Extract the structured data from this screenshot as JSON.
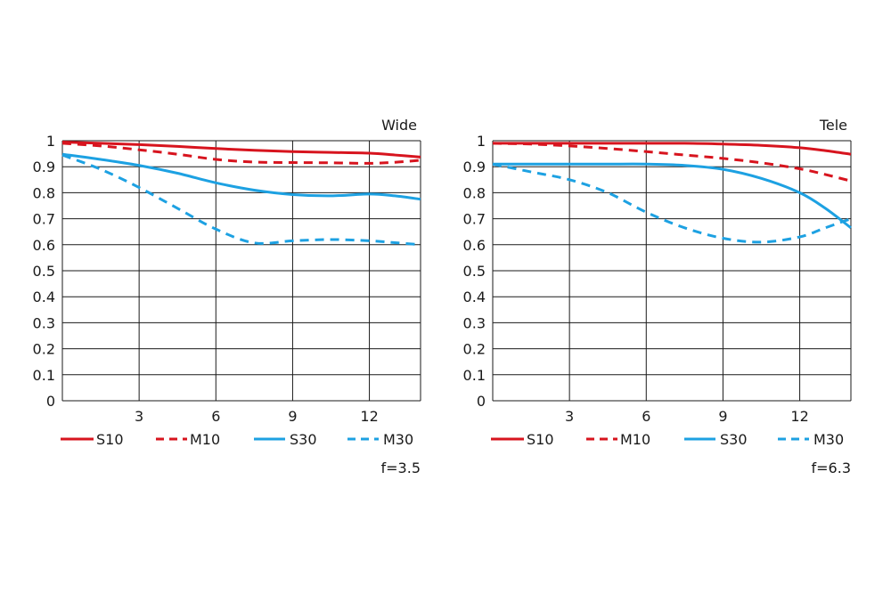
{
  "colors": {
    "red": "#d7141e",
    "blue": "#1da1e2",
    "grid": "#1a1a1a"
  },
  "chart_data": [
    {
      "type": "line",
      "title": "Wide",
      "footnote": "f=3.5",
      "xlim": [
        0,
        14
      ],
      "ylim": [
        0,
        1
      ],
      "xticks": [
        3,
        6,
        9,
        12
      ],
      "yticks": [
        0,
        0.1,
        0.2,
        0.3,
        0.4,
        0.5,
        0.6,
        0.7,
        0.8,
        0.9,
        1
      ],
      "ytick_labels": [
        "0",
        "0.1",
        "0.2",
        "0.3",
        "0.4",
        "0.5",
        "0.6",
        "0.7",
        "0.8",
        "0.9",
        "1"
      ],
      "grid": true,
      "legend_position": "bottom",
      "x": [
        0,
        1.5,
        3,
        4.5,
        6,
        7.5,
        9,
        10.5,
        12,
        13,
        14
      ],
      "series": [
        {
          "name": "S10",
          "color": "red",
          "dashed": false,
          "values": [
            0.995,
            0.99,
            0.985,
            0.978,
            0.97,
            0.963,
            0.958,
            0.955,
            0.952,
            0.945,
            0.937
          ]
        },
        {
          "name": "M10",
          "color": "red",
          "dashed": true,
          "values": [
            0.99,
            0.98,
            0.965,
            0.948,
            0.928,
            0.918,
            0.916,
            0.915,
            0.913,
            0.917,
            0.925
          ]
        },
        {
          "name": "S30",
          "color": "blue",
          "dashed": false,
          "values": [
            0.948,
            0.928,
            0.905,
            0.875,
            0.838,
            0.81,
            0.793,
            0.788,
            0.795,
            0.788,
            0.775
          ]
        },
        {
          "name": "M30",
          "color": "blue",
          "dashed": true,
          "values": [
            0.945,
            0.89,
            0.82,
            0.74,
            0.66,
            0.607,
            0.615,
            0.62,
            0.615,
            0.608,
            0.6
          ]
        }
      ]
    },
    {
      "type": "line",
      "title": "Tele",
      "footnote": "f=6.3",
      "xlim": [
        0,
        14
      ],
      "ylim": [
        0,
        1
      ],
      "xticks": [
        3,
        6,
        9,
        12
      ],
      "yticks": [
        0,
        0.1,
        0.2,
        0.3,
        0.4,
        0.5,
        0.6,
        0.7,
        0.8,
        0.9,
        1
      ],
      "ytick_labels": [
        "0",
        "0.1",
        "0.2",
        "0.3",
        "0.4",
        "0.5",
        "0.6",
        "0.7",
        "0.8",
        "0.9",
        "1"
      ],
      "grid": true,
      "legend_position": "bottom",
      "x": [
        0,
        1.5,
        3,
        4.5,
        6,
        7.5,
        9,
        10.5,
        12,
        13,
        14
      ],
      "series": [
        {
          "name": "S10",
          "color": "red",
          "dashed": false,
          "values": [
            0.99,
            0.99,
            0.99,
            0.99,
            0.99,
            0.99,
            0.987,
            0.982,
            0.973,
            0.962,
            0.948
          ]
        },
        {
          "name": "M10",
          "color": "red",
          "dashed": true,
          "values": [
            0.99,
            0.987,
            0.98,
            0.97,
            0.958,
            0.945,
            0.932,
            0.915,
            0.892,
            0.87,
            0.845
          ]
        },
        {
          "name": "S30",
          "color": "blue",
          "dashed": false,
          "values": [
            0.91,
            0.91,
            0.91,
            0.91,
            0.91,
            0.905,
            0.89,
            0.855,
            0.8,
            0.74,
            0.665
          ]
        },
        {
          "name": "M30",
          "color": "blue",
          "dashed": true,
          "values": [
            0.91,
            0.88,
            0.85,
            0.8,
            0.725,
            0.665,
            0.625,
            0.61,
            0.63,
            0.665,
            0.7
          ]
        }
      ]
    }
  ]
}
